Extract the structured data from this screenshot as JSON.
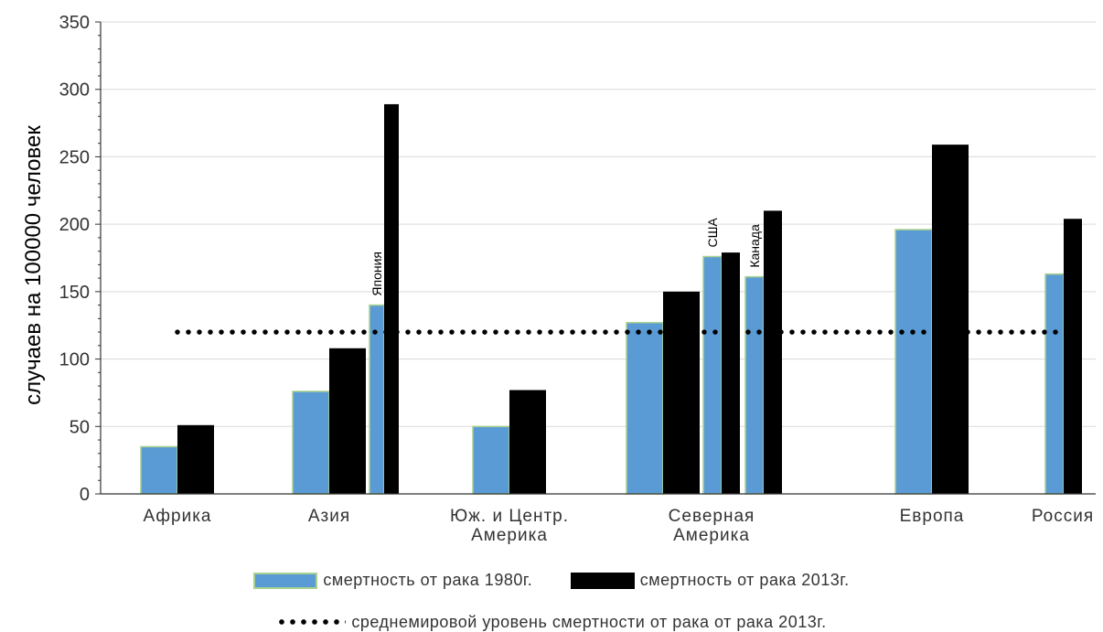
{
  "chart_data": {
    "type": "bar",
    "ylabel": "случаев на 100000 человек",
    "ylim": [
      0,
      350
    ],
    "yticks": [
      0,
      50,
      100,
      150,
      200,
      250,
      300,
      350
    ],
    "grid": true,
    "groups": [
      {
        "label_lines": [
          "Африка"
        ],
        "pairs": [
          {
            "v1980": 35,
            "v2013": 51
          }
        ]
      },
      {
        "label_lines": [
          "Азия"
        ],
        "pairs": [
          {
            "v1980": 76,
            "v2013": 108
          },
          {
            "v1980": 140,
            "v2013": 289,
            "annotation": "Япония"
          }
        ]
      },
      {
        "label_lines": [
          "Юж. и Центр.",
          "Америка"
        ],
        "pairs": [
          {
            "v1980": 50,
            "v2013": 77
          }
        ]
      },
      {
        "label_lines": [
          "Северная",
          "Америка"
        ],
        "pairs": [
          {
            "v1980": 127,
            "v2013": 150
          },
          {
            "v1980": 176,
            "v2013": 179,
            "annotation": "США"
          },
          {
            "v1980": 161,
            "v2013": 210,
            "annotation": "Канада"
          }
        ]
      },
      {
        "label_lines": [
          "Европа"
        ],
        "pairs": [
          {
            "v1980": 196,
            "v2013": 259
          }
        ]
      },
      {
        "label_lines": [
          "Россия"
        ],
        "pairs": [
          {
            "v1980": 163,
            "v2013": 204
          }
        ]
      }
    ],
    "reference_line": {
      "value": 120,
      "name": "среднемировой уровень смертности от рака от рака 2013г."
    },
    "series": [
      {
        "name": "смертность от рака 1980г.",
        "color": "#5b9bd5"
      },
      {
        "name": "смертность от рака 2013г.",
        "color": "#000000"
      }
    ],
    "legend_position": "bottom"
  },
  "legend": {
    "s1980": "смертность от рака 1980г.",
    "s2013": "смертность от рака 2013г.",
    "ref": "среднемировой уровень смертности от рака от рака 2013г."
  }
}
